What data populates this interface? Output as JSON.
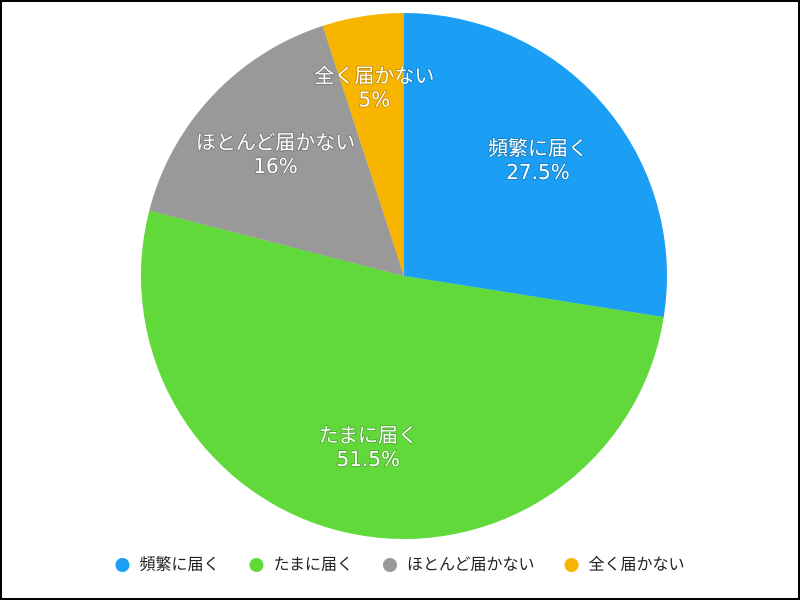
{
  "chart_data": {
    "type": "pie",
    "categories": [
      "頻繁に届く",
      "たまに届く",
      "ほとんど届かない",
      "全く届かない"
    ],
    "values": [
      27.5,
      51.5,
      16,
      5
    ],
    "value_labels": [
      "27.5%",
      "51.5%",
      "16%",
      "5%"
    ],
    "colors": [
      "#1a9ff5",
      "#62d93b",
      "#999999",
      "#f7b500"
    ],
    "legend": "bottom"
  }
}
